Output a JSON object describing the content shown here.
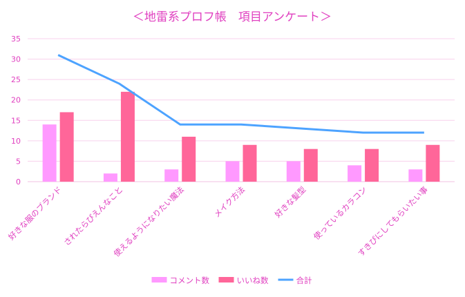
{
  "chart_data": {
    "type": "bar",
    "title": "＜地雷系プロフ帳　項目アンケート＞",
    "categories": [
      "好きな服のブランド",
      "されたらぴえんなこと",
      "使えるようになりたい魔法",
      "メイク方法",
      "好きな髪型",
      "使っているカラコン",
      "すきぴにしてもらいたい事"
    ],
    "series": [
      {
        "name": "コメント数",
        "kind": "bar",
        "color": "#ff99ff",
        "values": [
          14,
          2,
          3,
          5,
          5,
          4,
          3
        ]
      },
      {
        "name": "いいね数",
        "kind": "bar",
        "color": "#ff6699",
        "values": [
          17,
          22,
          11,
          9,
          8,
          8,
          9
        ]
      },
      {
        "name": "合計",
        "kind": "line",
        "color": "#4da3ff",
        "values": [
          31,
          24,
          14,
          14,
          13,
          12,
          12
        ]
      }
    ],
    "yticks": [
      "0",
      "5",
      "10",
      "15",
      "20",
      "25",
      "30",
      "35"
    ],
    "ylim": [
      0,
      35
    ],
    "grid": true,
    "legend": "bottom",
    "colors": {
      "title": "#e040c0",
      "tick": "#e040c0",
      "grid": "#f8d0ec",
      "axis": "#f0c0e0"
    }
  }
}
